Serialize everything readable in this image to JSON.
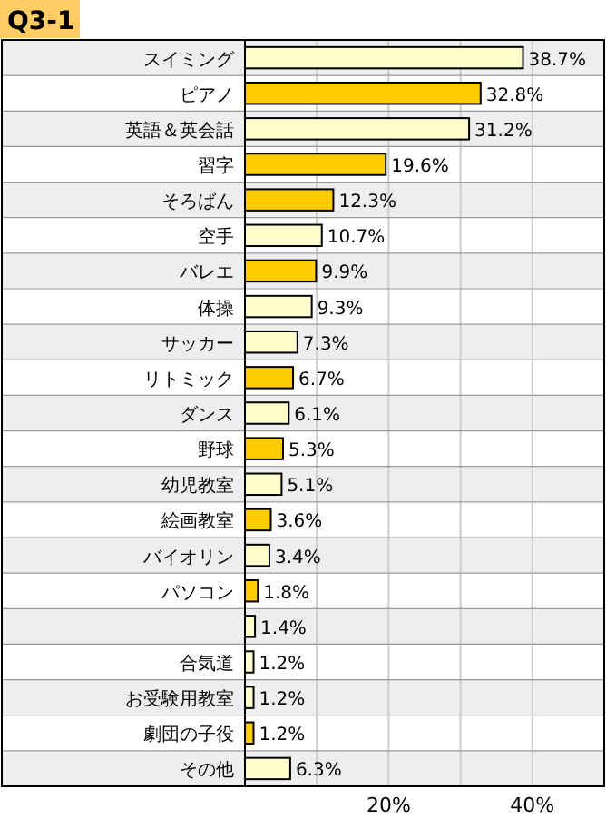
{
  "chart_data": {
    "type": "bar",
    "orientation": "horizontal",
    "title": "Q3-1",
    "categories": [
      "スイミング",
      "ピアノ",
      "英語＆英会話",
      "習字",
      "そろばん",
      "空手",
      "バレエ",
      "体操",
      "サッカー",
      "リトミック",
      "ダンス",
      "野球",
      "幼児教室",
      "絵画教室",
      "バイオリン",
      "パソコン",
      null,
      "合気道",
      "お受験用教室",
      "劇団の子役",
      "その他"
    ],
    "values": [
      38.7,
      32.8,
      31.2,
      19.6,
      12.3,
      10.7,
      9.9,
      9.3,
      7.3,
      6.7,
      6.1,
      5.3,
      5.1,
      3.6,
      3.4,
      1.8,
      1.4,
      1.2,
      1.2,
      1.2,
      6.3
    ],
    "value_labels": [
      "38.7%",
      "32.8%",
      "31.2%",
      "19.6%",
      "12.3%",
      "10.7%",
      "9.9%",
      "9.3%",
      "7.3%",
      "6.7%",
      "6.1%",
      "5.3%",
      "5.1%",
      "3.6%",
      "3.4%",
      "1.8%",
      "1.4%",
      "1.2%",
      "1.2%",
      "1.2%",
      "6.3%"
    ],
    "colors": [
      "#ffffcc",
      "#ffcc00",
      "#ffffcc",
      "#ffcc00",
      "#ffcc00",
      "#ffffcc",
      "#ffcc00",
      "#ffffcc",
      "#ffffcc",
      "#ffcc00",
      "#ffffcc",
      "#ffcc00",
      "#ffffcc",
      "#ffcc00",
      "#ffffcc",
      "#ffcc00",
      "#ffffcc",
      "#ffffcc",
      "#ffffcc",
      "#ffcc00",
      "#ffffcc"
    ],
    "xlim": [
      0,
      50
    ],
    "xticks": [
      {
        "value": 10,
        "label": null
      },
      {
        "value": 20,
        "label": "20%"
      },
      {
        "value": 30,
        "label": null
      },
      {
        "value": 40,
        "label": "40%"
      }
    ],
    "grid": "x"
  }
}
